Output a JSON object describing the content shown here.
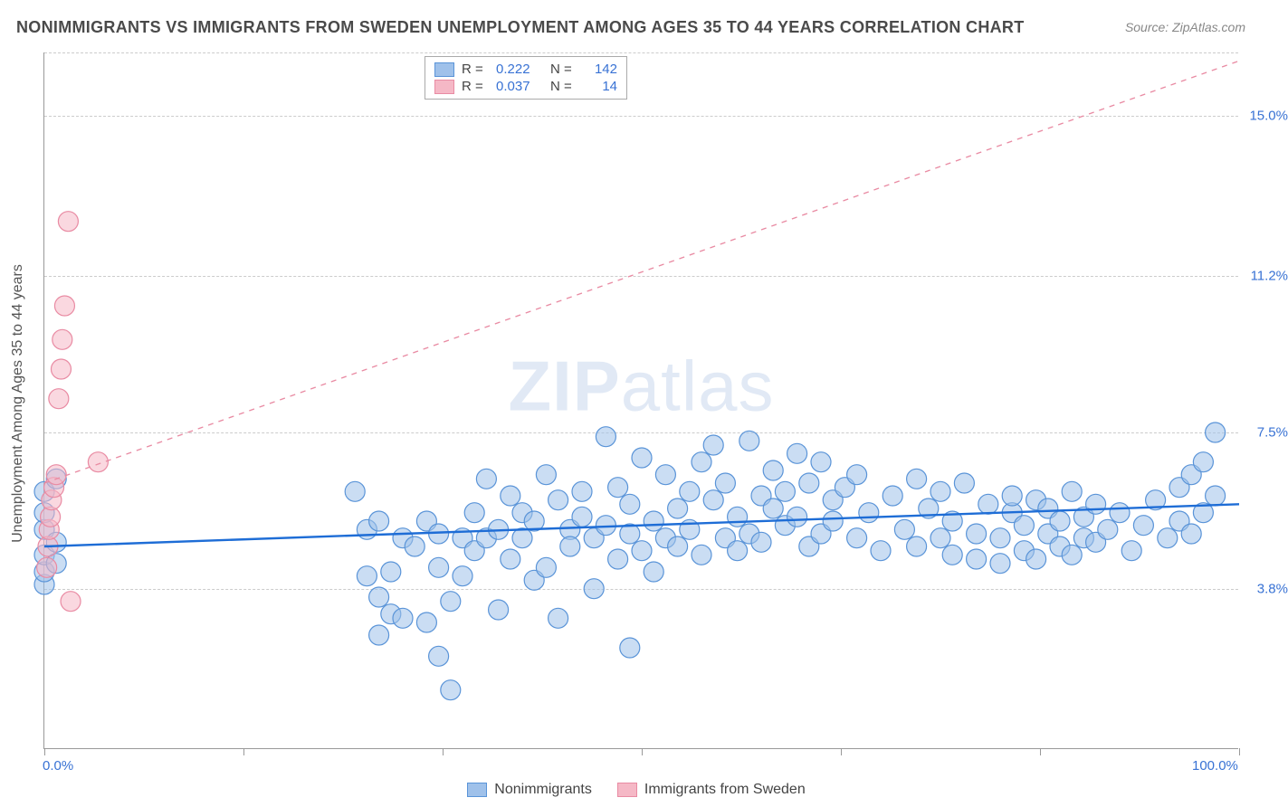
{
  "title": "NONIMMIGRANTS VS IMMIGRANTS FROM SWEDEN UNEMPLOYMENT AMONG AGES 35 TO 44 YEARS CORRELATION CHART",
  "source": "Source: ZipAtlas.com",
  "watermark_a": "ZIP",
  "watermark_b": "atlas",
  "y_axis_label": "Unemployment Among Ages 35 to 44 years",
  "chart": {
    "type": "scatter",
    "background_color": "#ffffff",
    "grid_color": "#cccccc",
    "axis_color": "#999999",
    "xlim": [
      0,
      100
    ],
    "ylim": [
      0,
      16.5
    ],
    "x_ticks": [
      0.0,
      100.0
    ],
    "x_tick_labels": [
      "0.0%",
      "100.0%"
    ],
    "x_major_ticks": [
      0,
      16.67,
      33.33,
      50,
      66.67,
      83.33,
      100
    ],
    "y_ticks": [
      3.8,
      7.5,
      11.2,
      15.0
    ],
    "y_tick_labels": [
      "3.8%",
      "7.5%",
      "11.2%",
      "15.0%"
    ],
    "series": [
      {
        "name": "Nonimmigrants",
        "color_fill": "#9fc1ea",
        "color_stroke": "#5a94d8",
        "fill_opacity": 0.55,
        "marker_r": 11,
        "R": "0.222",
        "N": "142",
        "trend": {
          "x1": 0,
          "y1": 4.8,
          "x2": 100,
          "y2": 5.8,
          "color": "#1e6dd6",
          "width": 2.4,
          "dash": ""
        },
        "points": [
          [
            0,
            3.9
          ],
          [
            0,
            4.2
          ],
          [
            0,
            4.6
          ],
          [
            0,
            5.2
          ],
          [
            0,
            5.6
          ],
          [
            0,
            6.1
          ],
          [
            1,
            4.9
          ],
          [
            1,
            6.4
          ],
          [
            1,
            4.4
          ],
          [
            26,
            6.1
          ],
          [
            27,
            5.2
          ],
          [
            27,
            4.1
          ],
          [
            28,
            3.6
          ],
          [
            28,
            5.4
          ],
          [
            28,
            2.7
          ],
          [
            29,
            3.2
          ],
          [
            29,
            4.2
          ],
          [
            30,
            5.0
          ],
          [
            30,
            3.1
          ],
          [
            31,
            4.8
          ],
          [
            32,
            3.0
          ],
          [
            32,
            5.4
          ],
          [
            33,
            2.2
          ],
          [
            33,
            5.1
          ],
          [
            33,
            4.3
          ],
          [
            34,
            1.4
          ],
          [
            34,
            3.5
          ],
          [
            35,
            5.0
          ],
          [
            35,
            4.1
          ],
          [
            36,
            4.7
          ],
          [
            36,
            5.6
          ],
          [
            37,
            6.4
          ],
          [
            37,
            5.0
          ],
          [
            38,
            3.3
          ],
          [
            38,
            5.2
          ],
          [
            39,
            4.5
          ],
          [
            39,
            6.0
          ],
          [
            40,
            5.6
          ],
          [
            40,
            5.0
          ],
          [
            41,
            4.0
          ],
          [
            41,
            5.4
          ],
          [
            42,
            6.5
          ],
          [
            42,
            4.3
          ],
          [
            43,
            3.1
          ],
          [
            43,
            5.9
          ],
          [
            44,
            5.2
          ],
          [
            44,
            4.8
          ],
          [
            45,
            6.1
          ],
          [
            45,
            5.5
          ],
          [
            46,
            5.0
          ],
          [
            46,
            3.8
          ],
          [
            47,
            7.4
          ],
          [
            47,
            5.3
          ],
          [
            48,
            4.5
          ],
          [
            48,
            6.2
          ],
          [
            49,
            5.1
          ],
          [
            49,
            5.8
          ],
          [
            49,
            2.4
          ],
          [
            50,
            4.7
          ],
          [
            50,
            6.9
          ],
          [
            51,
            5.4
          ],
          [
            51,
            4.2
          ],
          [
            52,
            5.0
          ],
          [
            52,
            6.5
          ],
          [
            53,
            5.7
          ],
          [
            53,
            4.8
          ],
          [
            54,
            6.1
          ],
          [
            54,
            5.2
          ],
          [
            55,
            6.8
          ],
          [
            55,
            4.6
          ],
          [
            56,
            5.9
          ],
          [
            56,
            7.2
          ],
          [
            57,
            5.0
          ],
          [
            57,
            6.3
          ],
          [
            58,
            4.7
          ],
          [
            58,
            5.5
          ],
          [
            59,
            7.3
          ],
          [
            59,
            5.1
          ],
          [
            60,
            6.0
          ],
          [
            60,
            4.9
          ],
          [
            61,
            5.7
          ],
          [
            61,
            6.6
          ],
          [
            62,
            5.3
          ],
          [
            62,
            6.1
          ],
          [
            63,
            7.0
          ],
          [
            63,
            5.5
          ],
          [
            64,
            4.8
          ],
          [
            64,
            6.3
          ],
          [
            65,
            5.1
          ],
          [
            65,
            6.8
          ],
          [
            66,
            5.4
          ],
          [
            66,
            5.9
          ],
          [
            67,
            6.2
          ],
          [
            68,
            5.0
          ],
          [
            68,
            6.5
          ],
          [
            69,
            5.6
          ],
          [
            70,
            4.7
          ],
          [
            71,
            6.0
          ],
          [
            72,
            5.2
          ],
          [
            73,
            6.4
          ],
          [
            73,
            4.8
          ],
          [
            74,
            5.7
          ],
          [
            75,
            5.0
          ],
          [
            75,
            6.1
          ],
          [
            76,
            5.4
          ],
          [
            76,
            4.6
          ],
          [
            77,
            6.3
          ],
          [
            78,
            5.1
          ],
          [
            78,
            4.5
          ],
          [
            79,
            5.8
          ],
          [
            80,
            5.0
          ],
          [
            80,
            4.4
          ],
          [
            81,
            5.6
          ],
          [
            81,
            6.0
          ],
          [
            82,
            4.7
          ],
          [
            82,
            5.3
          ],
          [
            83,
            5.9
          ],
          [
            83,
            4.5
          ],
          [
            84,
            5.1
          ],
          [
            84,
            5.7
          ],
          [
            85,
            4.8
          ],
          [
            85,
            5.4
          ],
          [
            86,
            6.1
          ],
          [
            86,
            4.6
          ],
          [
            87,
            5.0
          ],
          [
            87,
            5.5
          ],
          [
            88,
            4.9
          ],
          [
            88,
            5.8
          ],
          [
            89,
            5.2
          ],
          [
            90,
            5.6
          ],
          [
            91,
            4.7
          ],
          [
            92,
            5.3
          ],
          [
            93,
            5.9
          ],
          [
            94,
            5.0
          ],
          [
            95,
            6.2
          ],
          [
            95,
            5.4
          ],
          [
            96,
            6.5
          ],
          [
            96,
            5.1
          ],
          [
            97,
            6.8
          ],
          [
            97,
            5.6
          ],
          [
            98,
            7.5
          ],
          [
            98,
            6.0
          ]
        ]
      },
      {
        "name": "Immigrants from Sweden",
        "color_fill": "#f5b8c6",
        "color_stroke": "#e98ba3",
        "fill_opacity": 0.55,
        "marker_r": 11,
        "R": "0.037",
        "N": "14",
        "trend": {
          "x1": 0,
          "y1": 6.3,
          "x2": 100,
          "y2": 16.3,
          "color": "#e98ba3",
          "width": 1.4,
          "dash": "6,6"
        },
        "points": [
          [
            0.2,
            4.3
          ],
          [
            0.3,
            4.8
          ],
          [
            0.4,
            5.2
          ],
          [
            0.5,
            5.5
          ],
          [
            0.6,
            5.9
          ],
          [
            0.8,
            6.2
          ],
          [
            1.0,
            6.5
          ],
          [
            1.2,
            8.3
          ],
          [
            1.4,
            9.0
          ],
          [
            1.5,
            9.7
          ],
          [
            1.7,
            10.5
          ],
          [
            2.0,
            12.5
          ],
          [
            2.2,
            3.5
          ],
          [
            4.5,
            6.8
          ]
        ]
      }
    ],
    "legend_top": {
      "r_label": "R  =",
      "n_label": "N  ="
    },
    "legend_bottom": [
      {
        "label": "Nonimmigrants",
        "fill": "#9fc1ea",
        "stroke": "#5a94d8"
      },
      {
        "label": "Immigrants from Sweden",
        "fill": "#f5b8c6",
        "stroke": "#e98ba3"
      }
    ]
  }
}
